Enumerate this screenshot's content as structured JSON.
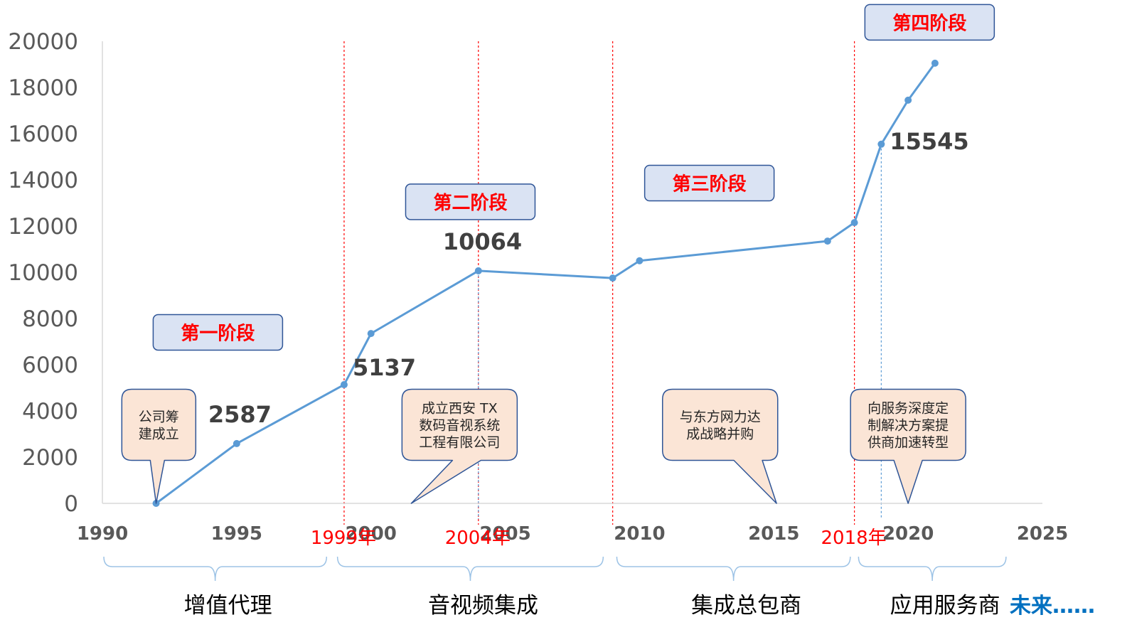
{
  "chart_data": {
    "type": "line",
    "title": "",
    "xlabel": "",
    "ylabel": "",
    "xlim": [
      1990,
      2025
    ],
    "ylim": [
      0,
      20000
    ],
    "x_ticks": [
      "1990",
      "1995",
      "2000",
      "2005",
      "2010",
      "2015",
      "2020",
      "2025"
    ],
    "y_ticks": [
      "0",
      "2000",
      "4000",
      "6000",
      "8000",
      "10000",
      "12000",
      "14000",
      "16000",
      "18000",
      "20000"
    ],
    "grid": false,
    "series": [
      {
        "color": "#5b9bd5",
        "points": [
          {
            "x": 1992,
            "y": 0
          },
          {
            "x": 1995,
            "y": 2587
          },
          {
            "x": 1999,
            "y": 5137
          },
          {
            "x": 2000,
            "y": 7350
          },
          {
            "x": 2004,
            "y": 10064
          },
          {
            "x": 2009,
            "y": 9750
          },
          {
            "x": 2010,
            "y": 10500
          },
          {
            "x": 2017,
            "y": 11350
          },
          {
            "x": 2018,
            "y": 12150
          },
          {
            "x": 2019,
            "y": 15545
          },
          {
            "x": 2020,
            "y": 17450
          },
          {
            "x": 2021,
            "y": 19050
          }
        ]
      }
    ],
    "data_labels": [
      {
        "text": "2587",
        "x": 1995,
        "y": 2587
      },
      {
        "text": "5137",
        "x": 1999,
        "y": 5137
      },
      {
        "text": "10064",
        "x": 2004,
        "y": 10064
      },
      {
        "text": "15545",
        "x": 2019,
        "y": 15545
      }
    ],
    "milestones": [
      {
        "x": 1999,
        "label": "1999年",
        "color": "#ff0000"
      },
      {
        "x": 2004,
        "label": "2004年",
        "color": "#ff0000"
      },
      {
        "x": 2009,
        "label": "",
        "color": "#ff0000"
      },
      {
        "x": 2018,
        "label": "2018年",
        "color": "#ff0000"
      }
    ],
    "guide_lines": [
      {
        "x": 2004,
        "y": 10064,
        "color": "#5b9bd5"
      },
      {
        "x": 2019,
        "y": 15545,
        "color": "#5b9bd5"
      }
    ],
    "phases": [
      {
        "label": "第一阶段",
        "x": 1994.3,
        "y": 7400
      },
      {
        "label": "第二阶段",
        "x": 2003.7,
        "y": 13050
      },
      {
        "label": "第三阶段",
        "x": 2012.6,
        "y": 13860
      },
      {
        "label": "第四阶段",
        "x": 2020.8,
        "y": 20820
      }
    ],
    "callouts": [
      {
        "lines": [
          "公司筹",
          "建成立"
        ],
        "x": 1992.1,
        "y": 3400,
        "tail_x": 1992,
        "tail_y": 0
      },
      {
        "lines": [
          "成立西安 TX",
          "数码音视系统",
          "工程有限公司"
        ],
        "x": 2003.3,
        "y": 3400,
        "tail_x": 2001.5,
        "tail_y": 0
      },
      {
        "lines": [
          "与东方网力达",
          "成战略并购"
        ],
        "x": 2013.0,
        "y": 3400,
        "tail_x": 2015.1,
        "tail_y": 0
      },
      {
        "lines": [
          "向服务深度定",
          "制解决方案提",
          "供商加速转型"
        ],
        "x": 2020.0,
        "y": 3400,
        "tail_x": 2020.0,
        "tail_y": 0
      }
    ],
    "eras": [
      {
        "label": "增值代理",
        "from": 1990,
        "to": 1998.4
      },
      {
        "label": "音视频集成",
        "from": 1998.7,
        "to": 2008.7
      },
      {
        "label": "集成总包商",
        "from": 2009.1,
        "to": 2017.9
      },
      {
        "label": "应用服务商",
        "from": 2018.1,
        "to": 2023.7
      }
    ],
    "future_label": "未来……",
    "colors": {
      "line": "#5b9bd5",
      "milestone": "#ff0000",
      "phase_fill": "#dae3f3",
      "phase_border": "#2f5597",
      "callout_fill": "#fbe5d6",
      "callout_border": "#2f5597"
    }
  }
}
